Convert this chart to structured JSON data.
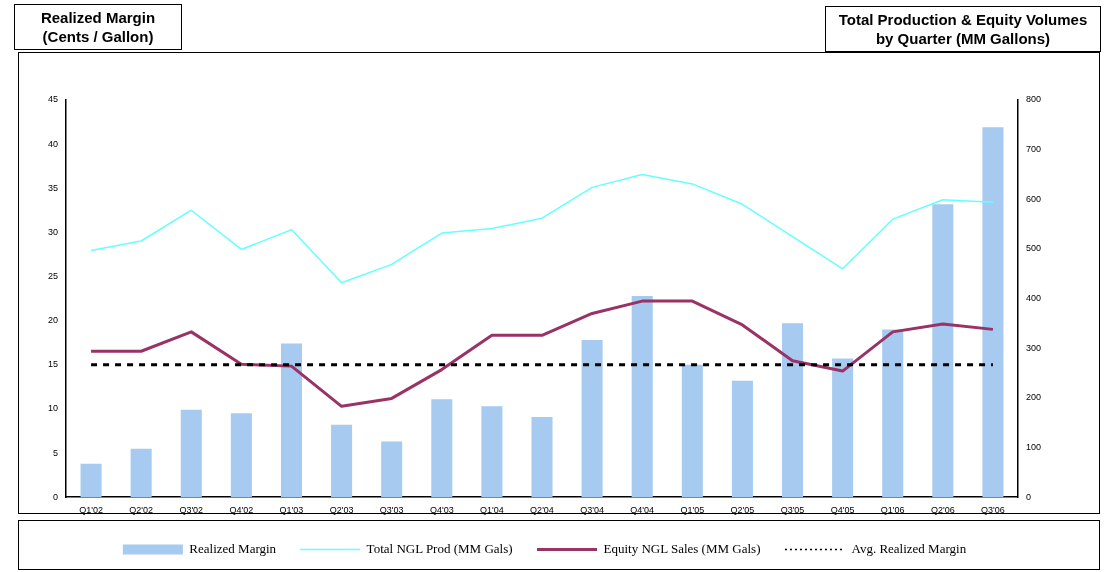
{
  "chart_data": {
    "type": "bar",
    "ylabel": "Realized Margin (Cents / Gallon)",
    "y2label": "Total Production & Equity Volumes by Quarter (MM Gallons)",
    "categories": [
      "Q1'02",
      "Q2'02",
      "Q3'02",
      "Q4'02",
      "Q1'03",
      "Q2'03",
      "Q3'03",
      "Q4'03",
      "Q1'04",
      "Q2'04",
      "Q3'04",
      "Q4'04",
      "Q1'05",
      "Q2'05",
      "Q3'05",
      "Q4'05",
      "Q1'06",
      "Q2'06",
      "Q3'06"
    ],
    "series": [
      {
        "name": "Realized Margin",
        "color": "#a6caf0",
        "values": [
          3.8,
          5.5,
          9.9,
          9.5,
          17.4,
          8.2,
          6.3,
          11.1,
          10.3,
          9.1,
          17.8,
          22.8,
          15.0,
          13.2,
          19.7,
          15.7,
          19.0,
          33.2,
          41.9
        ]
      },
      {
        "name": "Total NGL Prod (MM Gals)",
        "type": "line",
        "axis": "y2",
        "color": "#66ffff",
        "values": [
          497,
          516,
          578,
          499,
          539,
          432,
          469,
          532,
          541,
          562,
          624,
          650,
          631,
          590,
          525,
          460,
          560,
          599,
          594
        ]
      },
      {
        "name": "Equity NGL Sales (MM Gals)",
        "type": "line",
        "axis": "y2",
        "color": "#993366",
        "values": [
          294,
          294,
          333,
          268,
          264,
          183,
          199,
          257,
          326,
          326,
          370,
          395,
          395,
          347,
          275,
          254,
          333,
          349,
          338
        ]
      }
    ],
    "ref_lines": [
      {
        "axis": "y",
        "value": 15,
        "label": "Avg. Realized Margin",
        "color": "#000000",
        "line_style": "dashed"
      }
    ],
    "ylim": [
      0,
      45
    ],
    "yticks": [
      0,
      5,
      10,
      15,
      20,
      25,
      30,
      35,
      40,
      45
    ],
    "y2lim": [
      0,
      800
    ],
    "y2ticks": [
      0,
      100,
      200,
      300,
      400,
      500,
      600,
      700,
      800
    ],
    "grid": false,
    "legend": "bottom",
    "marker": "none"
  }
}
